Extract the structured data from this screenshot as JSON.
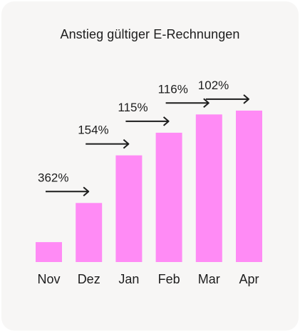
{
  "chart_data": {
    "type": "bar",
    "title": "Anstieg gültiger E-Rechnungen",
    "categories": [
      "Nov",
      "Dez",
      "Jan",
      "Feb",
      "Mar",
      "Apr"
    ],
    "values": [
      12.5,
      37.1,
      67,
      81.2,
      92.7,
      95.1
    ],
    "growth_labels": [
      "362%",
      "154%",
      "115%",
      "116%",
      "102%"
    ],
    "grid": false,
    "colors": {
      "bar": "#ff8bf5",
      "text": "#1d1d1d",
      "arrow": "#1d1d1d",
      "background": "#f7f6f5"
    }
  }
}
